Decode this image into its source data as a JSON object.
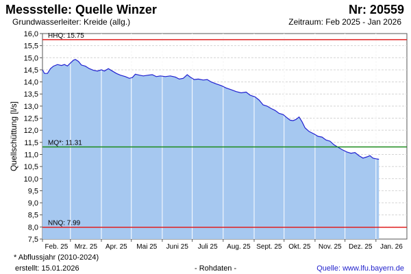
{
  "header": {
    "title": "Messstelle: Quelle Winzer",
    "station_no": "Nr: 20559",
    "aquifer": "Grundwasserleiter: Kreide (allg.)",
    "period": "Zeitraum: Feb 2025 - Jan 2026"
  },
  "footer": {
    "note": "* Abflussjahr (2010-2024)",
    "created": "erstellt:  15.01.2026",
    "raw": "- Rohdaten -",
    "source_label": "Quelle: ",
    "source_link": "www.lfu.bayern.de"
  },
  "colors": {
    "fill": "#a6c8f0",
    "line": "#2020d0",
    "hhq": "#e02020",
    "nnq": "#e02020",
    "mq": "#1a8a1a",
    "grid": "#d4d4d4",
    "month_line": "#ffffff"
  },
  "chart_data": {
    "type": "area",
    "ylabel": "Quellschüttung [l/s]",
    "ylim": [
      7.5,
      16.0
    ],
    "yticks": [
      "7,5",
      "8,0",
      "8,5",
      "9,0",
      "9,5",
      "10,0",
      "10,5",
      "11,0",
      "11,5",
      "12,0",
      "12,5",
      "13,0",
      "13,5",
      "14,0",
      "14,5",
      "15,0",
      "15,5",
      "16,0"
    ],
    "x_start": "2025-02-01",
    "x_end": "2026-01-31",
    "x_ticks": [
      {
        "date": "2025-02-01",
        "label": "Feb. 25"
      },
      {
        "date": "2025-03-01",
        "label": "Mrz. 25"
      },
      {
        "date": "2025-04-01",
        "label": "Apr. 25"
      },
      {
        "date": "2025-05-01",
        "label": "Mai 25"
      },
      {
        "date": "2025-06-01",
        "label": "Juni 25"
      },
      {
        "date": "2025-07-01",
        "label": "Juli 25"
      },
      {
        "date": "2025-08-01",
        "label": "Aug. 25"
      },
      {
        "date": "2025-09-01",
        "label": "Sept. 25"
      },
      {
        "date": "2025-10-01",
        "label": "Okt. 25"
      },
      {
        "date": "2025-11-01",
        "label": "Nov. 25"
      },
      {
        "date": "2025-12-01",
        "label": "Dez. 25"
      },
      {
        "date": "2026-01-01",
        "label": "Jan. 26"
      }
    ],
    "reference_lines": [
      {
        "name": "HHQ",
        "label": "HHQ: 15.75",
        "value": 15.75
      },
      {
        "name": "MQ",
        "label": "MQ*: 11.31",
        "value": 11.31
      },
      {
        "name": "NNQ",
        "label": "NNQ: 7.99",
        "value": 7.99
      }
    ],
    "series": [
      {
        "points": [
          [
            "2025-02-01",
            14.5
          ],
          [
            "2025-02-03",
            14.35
          ],
          [
            "2025-02-06",
            14.35
          ],
          [
            "2025-02-09",
            14.55
          ],
          [
            "2025-02-12",
            14.65
          ],
          [
            "2025-02-16",
            14.72
          ],
          [
            "2025-02-20",
            14.68
          ],
          [
            "2025-02-23",
            14.72
          ],
          [
            "2025-02-26",
            14.66
          ],
          [
            "2025-03-01",
            14.78
          ],
          [
            "2025-03-04",
            14.9
          ],
          [
            "2025-03-06",
            14.93
          ],
          [
            "2025-03-09",
            14.85
          ],
          [
            "2025-03-12",
            14.7
          ],
          [
            "2025-03-16",
            14.65
          ],
          [
            "2025-03-20",
            14.55
          ],
          [
            "2025-03-24",
            14.48
          ],
          [
            "2025-03-28",
            14.45
          ],
          [
            "2025-04-01",
            14.5
          ],
          [
            "2025-04-04",
            14.45
          ],
          [
            "2025-04-08",
            14.55
          ],
          [
            "2025-04-12",
            14.45
          ],
          [
            "2025-04-16",
            14.35
          ],
          [
            "2025-04-20",
            14.28
          ],
          [
            "2025-04-25",
            14.22
          ],
          [
            "2025-04-29",
            14.15
          ],
          [
            "2025-05-02",
            14.18
          ],
          [
            "2025-05-05",
            14.32
          ],
          [
            "2025-05-09",
            14.28
          ],
          [
            "2025-05-13",
            14.25
          ],
          [
            "2025-05-18",
            14.28
          ],
          [
            "2025-05-22",
            14.3
          ],
          [
            "2025-05-26",
            14.22
          ],
          [
            "2025-05-30",
            14.25
          ],
          [
            "2025-06-04",
            14.22
          ],
          [
            "2025-06-09",
            14.25
          ],
          [
            "2025-06-14",
            14.2
          ],
          [
            "2025-06-18",
            14.12
          ],
          [
            "2025-06-22",
            14.15
          ],
          [
            "2025-06-26",
            14.3
          ],
          [
            "2025-06-29",
            14.2
          ],
          [
            "2025-07-03",
            14.1
          ],
          [
            "2025-07-07",
            14.12
          ],
          [
            "2025-07-12",
            14.08
          ],
          [
            "2025-07-16",
            14.1
          ],
          [
            "2025-07-20",
            14.0
          ],
          [
            "2025-07-25",
            13.92
          ],
          [
            "2025-07-30",
            13.85
          ],
          [
            "2025-08-04",
            13.75
          ],
          [
            "2025-08-09",
            13.68
          ],
          [
            "2025-08-14",
            13.6
          ],
          [
            "2025-08-19",
            13.55
          ],
          [
            "2025-08-24",
            13.58
          ],
          [
            "2025-08-28",
            13.45
          ],
          [
            "2025-09-02",
            13.38
          ],
          [
            "2025-09-06",
            13.25
          ],
          [
            "2025-09-10",
            13.05
          ],
          [
            "2025-09-14",
            13.0
          ],
          [
            "2025-09-18",
            12.9
          ],
          [
            "2025-09-22",
            12.82
          ],
          [
            "2025-09-26",
            12.7
          ],
          [
            "2025-09-30",
            12.65
          ],
          [
            "2025-10-03",
            12.55
          ],
          [
            "2025-10-07",
            12.42
          ],
          [
            "2025-10-10",
            12.4
          ],
          [
            "2025-10-13",
            12.45
          ],
          [
            "2025-10-16",
            12.55
          ],
          [
            "2025-10-19",
            12.35
          ],
          [
            "2025-10-22",
            12.1
          ],
          [
            "2025-10-26",
            11.95
          ],
          [
            "2025-10-31",
            11.85
          ],
          [
            "2025-11-04",
            11.75
          ],
          [
            "2025-11-08",
            11.72
          ],
          [
            "2025-11-12",
            11.6
          ],
          [
            "2025-11-16",
            11.55
          ],
          [
            "2025-11-20",
            11.4
          ],
          [
            "2025-11-24",
            11.3
          ],
          [
            "2025-11-28",
            11.2
          ],
          [
            "2025-12-03",
            11.1
          ],
          [
            "2025-12-07",
            11.05
          ],
          [
            "2025-12-11",
            11.08
          ],
          [
            "2025-12-15",
            10.95
          ],
          [
            "2025-12-19",
            10.85
          ],
          [
            "2025-12-23",
            10.9
          ],
          [
            "2025-12-26",
            10.95
          ],
          [
            "2025-12-29",
            10.85
          ],
          [
            "2026-01-01",
            10.82
          ],
          [
            "2026-01-04",
            10.8
          ]
        ]
      }
    ]
  }
}
